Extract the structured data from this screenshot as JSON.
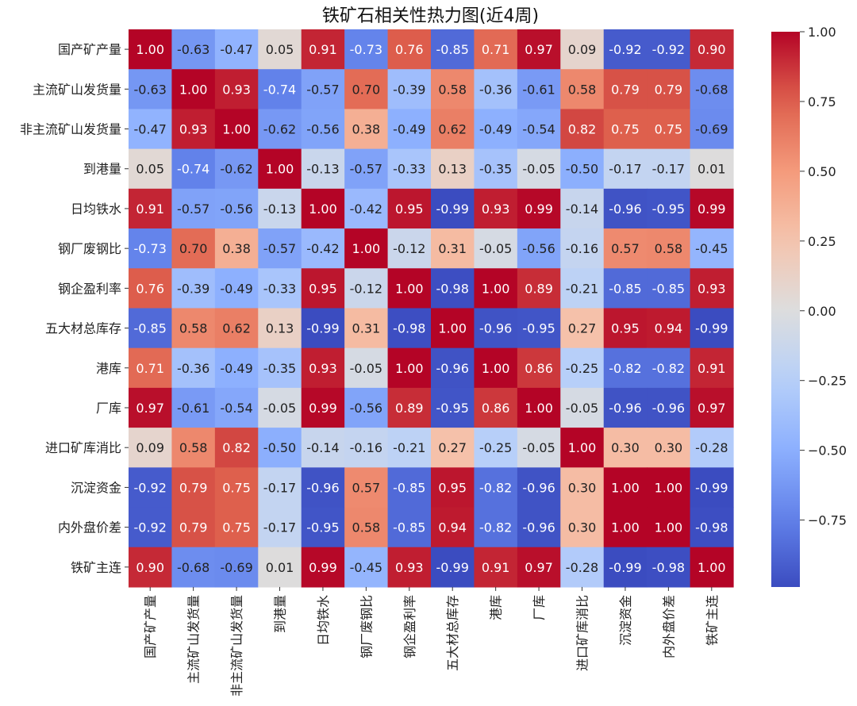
{
  "chart_data": {
    "type": "heatmap",
    "title": "铁矿石相关性热力图(近4周)",
    "labels": [
      "国产矿产量",
      "主流矿山发货量",
      "非主流矿山发货量",
      "到港量",
      "日均铁水",
      "钢厂废钢比",
      "钢企盈利率",
      "五大材总库存",
      "港库",
      "厂库",
      "进口矿库消比",
      "沉淀资金",
      "内外盘价差",
      "铁矿主连"
    ],
    "values": [
      [
        1.0,
        -0.63,
        -0.47,
        0.05,
        0.91,
        -0.73,
        0.76,
        -0.85,
        0.71,
        0.97,
        0.09,
        -0.92,
        -0.92,
        0.9
      ],
      [
        -0.63,
        1.0,
        0.93,
        -0.74,
        -0.57,
        0.7,
        -0.39,
        0.58,
        -0.36,
        -0.61,
        0.58,
        0.79,
        0.79,
        -0.68
      ],
      [
        -0.47,
        0.93,
        1.0,
        -0.62,
        -0.56,
        0.38,
        -0.49,
        0.62,
        -0.49,
        -0.54,
        0.82,
        0.75,
        0.75,
        -0.69
      ],
      [
        0.05,
        -0.74,
        -0.62,
        1.0,
        -0.13,
        -0.57,
        -0.33,
        0.13,
        -0.35,
        -0.05,
        -0.5,
        -0.17,
        -0.17,
        0.01
      ],
      [
        0.91,
        -0.57,
        -0.56,
        -0.13,
        1.0,
        -0.42,
        0.95,
        -0.99,
        0.93,
        0.99,
        -0.14,
        -0.96,
        -0.95,
        0.99
      ],
      [
        -0.73,
        0.7,
        0.38,
        -0.57,
        -0.42,
        1.0,
        -0.12,
        0.31,
        -0.05,
        -0.56,
        -0.16,
        0.57,
        0.58,
        -0.45
      ],
      [
        0.76,
        -0.39,
        -0.49,
        -0.33,
        0.95,
        -0.12,
        1.0,
        -0.98,
        1.0,
        0.89,
        -0.21,
        -0.85,
        -0.85,
        0.93
      ],
      [
        -0.85,
        0.58,
        0.62,
        0.13,
        -0.99,
        0.31,
        -0.98,
        1.0,
        -0.96,
        -0.95,
        0.27,
        0.95,
        0.94,
        -0.99
      ],
      [
        0.71,
        -0.36,
        -0.49,
        -0.35,
        0.93,
        -0.05,
        1.0,
        -0.96,
        1.0,
        0.86,
        -0.25,
        -0.82,
        -0.82,
        0.91
      ],
      [
        0.97,
        -0.61,
        -0.54,
        -0.05,
        0.99,
        -0.56,
        0.89,
        -0.95,
        0.86,
        1.0,
        -0.05,
        -0.96,
        -0.96,
        0.97
      ],
      [
        0.09,
        0.58,
        0.82,
        -0.5,
        -0.14,
        -0.16,
        -0.21,
        0.27,
        -0.25,
        -0.05,
        1.0,
        0.3,
        0.3,
        -0.28
      ],
      [
        -0.92,
        0.79,
        0.75,
        -0.17,
        -0.96,
        0.57,
        -0.85,
        0.95,
        -0.82,
        -0.96,
        0.3,
        1.0,
        1.0,
        -0.99
      ],
      [
        -0.92,
        0.79,
        0.75,
        -0.17,
        -0.95,
        0.58,
        -0.85,
        0.94,
        -0.82,
        -0.96,
        0.3,
        1.0,
        1.0,
        -0.98
      ],
      [
        0.9,
        -0.68,
        -0.69,
        0.01,
        0.99,
        -0.45,
        0.93,
        -0.99,
        0.91,
        0.97,
        -0.28,
        -0.99,
        -0.98,
        1.0
      ]
    ],
    "colorbar": {
      "ticks": [
        1.0,
        0.75,
        0.5,
        0.25,
        0.0,
        -0.25,
        -0.5,
        -0.75
      ],
      "tick_labels": [
        "1.00",
        "0.75",
        "0.50",
        "0.25",
        "0.00",
        "−0.25",
        "−0.50",
        "−0.75"
      ],
      "range": [
        -0.99,
        1.0
      ]
    },
    "colormap": "coolwarm",
    "annotations": true
  }
}
